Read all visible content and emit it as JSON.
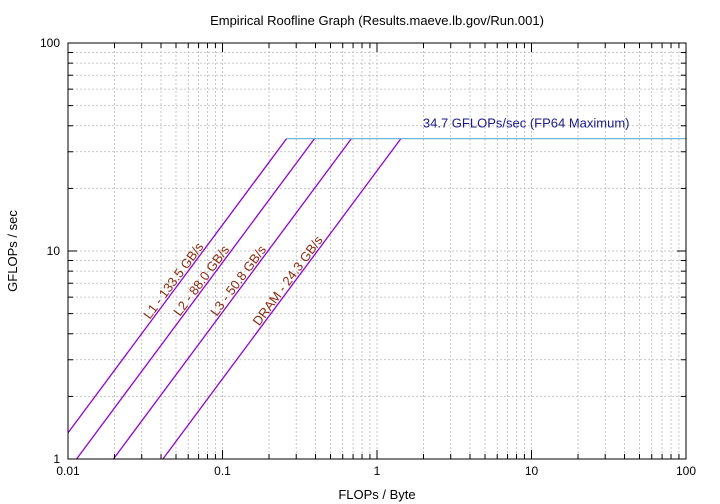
{
  "chart_data": {
    "type": "line",
    "title": "Empirical Roofline Graph (Results.maeve.lb.gov/Run.001)",
    "xlabel": "FLOPs / Byte",
    "ylabel": "GFLOPs / sec",
    "xscale": "log",
    "yscale": "log",
    "xlim": [
      0.01,
      100
    ],
    "ylim": [
      1,
      100
    ],
    "grid": true,
    "x_ticks": [
      0.01,
      0.1,
      1,
      10,
      100
    ],
    "x_tick_labels": [
      "0.01",
      "0.1",
      "1",
      "10",
      "100"
    ],
    "y_ticks": [
      1,
      10,
      100
    ],
    "y_tick_labels": [
      "1",
      "10",
      "100"
    ],
    "peak": {
      "label": "34.7 GFLOPs/sec (FP64 Maximum)",
      "value": 34.7,
      "color": "#6fb6d9",
      "label_color": "#1a1a8a"
    },
    "bandwidth_color": "#9400d3",
    "bandwidth_label_color": "#8b2a10",
    "series": [
      {
        "name": "L1",
        "label": "L1 - 133.5 GB/s",
        "bandwidth": 133.5
      },
      {
        "name": "L2",
        "label": "L2 - 88.0 GB/s",
        "bandwidth": 88.0
      },
      {
        "name": "L3",
        "label": "L3 - 50.8 GB/s",
        "bandwidth": 50.8
      },
      {
        "name": "DRAM",
        "label": "DRAM - 24.3 GB/s",
        "bandwidth": 24.3
      }
    ]
  }
}
